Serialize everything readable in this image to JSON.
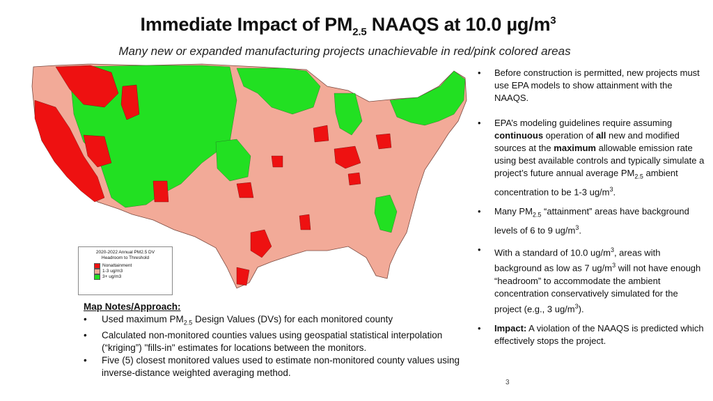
{
  "title": {
    "prefix": "Immediate Impact of PM",
    "sub": "2.5",
    "middle": " NAAQS at 10.0 µg/m",
    "sup": "3"
  },
  "subtitle": "Many new or expanded manufacturing projects unachievable in red/pink colored areas",
  "legend": {
    "title_line1": "2020-2022 Annual PM2.5 DV",
    "title_line2": "Headroom to Threshold",
    "items": [
      {
        "label": "Nonattainment",
        "color": "#ee1111"
      },
      {
        "label": "1-3 ug/m3",
        "color": "#f2aa98"
      },
      {
        "label": "3+ ug/m3",
        "color": "#22e022"
      }
    ]
  },
  "map_notes": {
    "heading": "Map Notes/Approach:",
    "item1_a": "Used maximum PM",
    "item1_sub": "2.5",
    "item1_b": " Design Values (DVs) for each monitored county",
    "item2": "Calculated non-monitored counties values using geospatial statistical interpolation (“kriging”) \"fills-in\" estimates for locations between the monitors.",
    "item3": "Five (5) closest monitored values used to estimate non-monitored county values using inverse-distance weighted averaging method."
  },
  "bullets": {
    "b1": "Before construction is permitted, new projects must use EPA models to show attainment with the NAAQS.",
    "b2_a": "EPA’s modeling guidelines require assuming ",
    "b2_bold1": "continuous",
    "b2_b": " operation of ",
    "b2_bold2": "all",
    "b2_c": " new and modified sources at the ",
    "b2_bold3": "maximum",
    "b2_d": " allowable emission rate using best available controls and typically simulate a project’s future annual average PM",
    "b2_sub": "2.5",
    "b2_e": " ambient concentration to be 1-3 ug/m",
    "b2_sup": "3",
    "b2_f": ".",
    "b3_a": "Many PM",
    "b3_sub": "2.5",
    "b3_b": " “attainment” areas have background levels of 6 to 9 ug/m",
    "b3_sup": "3",
    "b3_c": ".",
    "b4_a": "With a standard of 10.0 ug/m",
    "b4_sup1": "3",
    "b4_b": ", areas with background as low as 7 ug/m",
    "b4_sup2": "3",
    "b4_c": " will not have enough “headroom” to accommodate the ambient concentration conservatively simulated for the project (e.g., 3 ug/m",
    "b4_sup3": "3",
    "b4_d": ").",
    "b5_bold": "Impact:",
    "b5_text": " A violation of the NAAQS is predicted which effectively stops the project."
  },
  "page_number": "3"
}
